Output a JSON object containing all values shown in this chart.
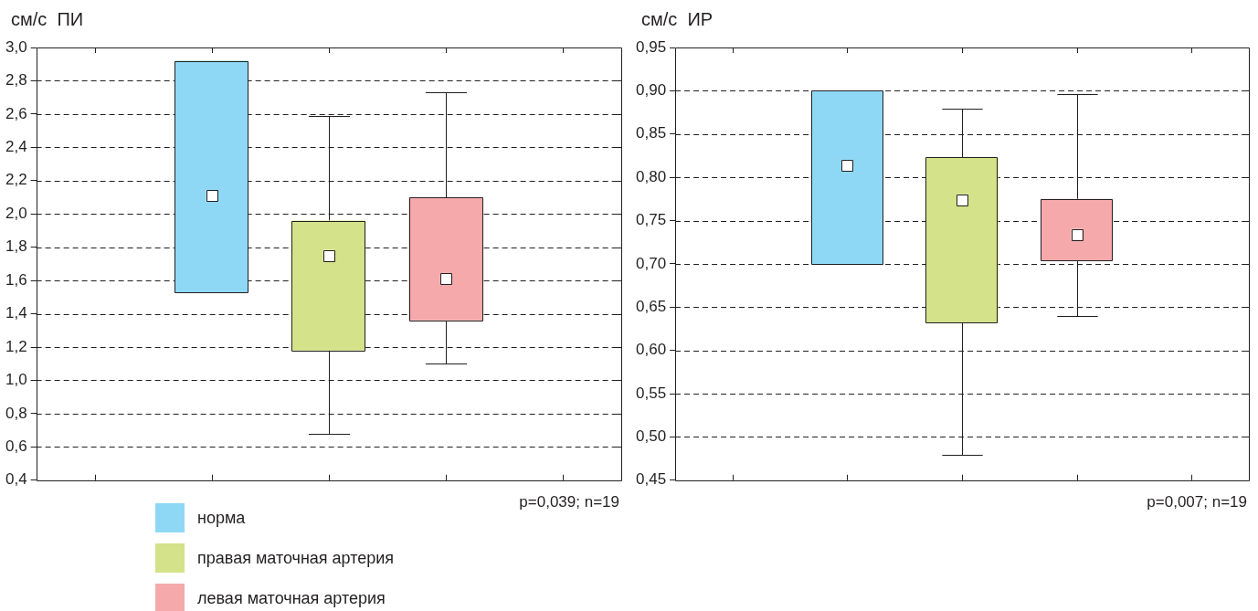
{
  "chart_data": [
    {
      "type": "box",
      "ylabel": "см/с  ПИ",
      "annotations": [
        "p=0,039; n=19"
      ],
      "categories": [
        null,
        null,
        null,
        null,
        null
      ],
      "series": [
        {
          "name": "норма",
          "color": "#8ed8f5",
          "boxes": [
            null,
            {
              "low": 1.53,
              "q1": 1.53,
              "median": 2.11,
              "mean": 2.11,
              "q3": 2.92,
              "high": 2.92
            },
            null,
            null,
            null
          ]
        },
        {
          "name": "правая маточная артерия",
          "color": "#d4e28a",
          "boxes": [
            null,
            null,
            {
              "low": 0.68,
              "q1": 1.18,
              "median": 1.75,
              "mean": 1.75,
              "q3": 1.96,
              "high": 2.59
            },
            null,
            null
          ]
        },
        {
          "name": "левая маточная артерия",
          "color": "#f5a9ab",
          "boxes": [
            null,
            null,
            null,
            {
              "low": 1.1,
              "q1": 1.36,
              "median": 1.61,
              "mean": 1.61,
              "q3": 2.1,
              "high": 2.73
            },
            null
          ]
        }
      ],
      "ylim": [
        0.4,
        3.0
      ],
      "yticks": [
        {
          "value": 0.4,
          "label": "0,4"
        },
        {
          "value": 0.6,
          "label": "0,6"
        },
        {
          "value": 0.8,
          "label": "0,8"
        },
        {
          "value": 1.0,
          "label": "1,0"
        },
        {
          "value": 1.2,
          "label": "1,2"
        },
        {
          "value": 1.4,
          "label": "1,4"
        },
        {
          "value": 1.6,
          "label": "1,6"
        },
        {
          "value": 1.8,
          "label": "1,8"
        },
        {
          "value": 2.0,
          "label": "2,0"
        },
        {
          "value": 2.2,
          "label": "2,2"
        },
        {
          "value": 2.4,
          "label": "2,4"
        },
        {
          "value": 2.6,
          "label": "2,6"
        },
        {
          "value": 2.8,
          "label": "2,8"
        },
        {
          "value": 3.0,
          "label": "3,0"
        }
      ],
      "grid": "y",
      "legend": "bottom",
      "tick_labels": "y",
      "marker": "square"
    },
    {
      "type": "box",
      "ylabel": "см/с  ИР",
      "annotations": [
        "p=0,007; n=19"
      ],
      "categories": [
        null,
        null,
        null,
        null,
        null
      ],
      "series": [
        {
          "color": "#8ed8f5",
          "boxes": [
            null,
            {
              "low": 0.7,
              "q1": 0.7,
              "median": 0.814,
              "mean": 0.814,
              "q3": 0.9,
              "high": 0.9
            },
            null,
            null,
            null
          ]
        },
        {
          "color": "#d4e28a",
          "boxes": [
            null,
            null,
            {
              "low": 0.479,
              "q1": 0.632,
              "median": 0.774,
              "mean": 0.774,
              "q3": 0.823,
              "high": 0.879
            },
            null,
            null
          ]
        },
        {
          "color": "#f5a9ab",
          "boxes": [
            null,
            null,
            null,
            {
              "low": 0.64,
              "q1": 0.704,
              "median": 0.734,
              "mean": 0.734,
              "q3": 0.775,
              "high": 0.896
            },
            null
          ]
        }
      ],
      "ylim": [
        0.45,
        0.95
      ],
      "yticks": [
        {
          "value": 0.45,
          "label": "0,45"
        },
        {
          "value": 0.5,
          "label": "0,50"
        },
        {
          "value": 0.55,
          "label": "0,55"
        },
        {
          "value": 0.6,
          "label": "0,60"
        },
        {
          "value": 0.65,
          "label": "0,65"
        },
        {
          "value": 0.7,
          "label": "0,70"
        },
        {
          "value": 0.75,
          "label": "0,75"
        },
        {
          "value": 0.8,
          "label": "0,80"
        },
        {
          "value": 0.85,
          "label": "0,85"
        },
        {
          "value": 0.9,
          "label": "0,90"
        },
        {
          "value": 0.95,
          "label": "0,95"
        }
      ],
      "grid": "y",
      "tick_labels": "y",
      "marker": "square"
    }
  ]
}
